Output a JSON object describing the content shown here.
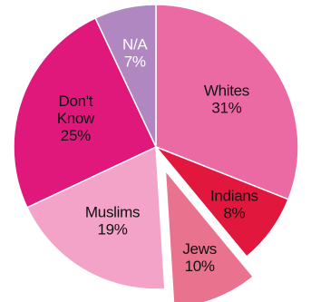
{
  "chart_data": {
    "type": "pie",
    "title": "",
    "start_angle_deg": 0,
    "direction": "clockwise",
    "slices": [
      {
        "label": "Whites",
        "value_label": "31%",
        "value": 31,
        "color": "#ec6aa4",
        "text_color": "#111111",
        "exploded": false
      },
      {
        "label": "Indians",
        "value_label": "8%",
        "value": 8,
        "color": "#e2173d",
        "text_color": "#111111",
        "exploded": false
      },
      {
        "label": "Jews",
        "value_label": "10%",
        "value": 10,
        "color": "#e9728e",
        "text_color": "#111111",
        "exploded": true
      },
      {
        "label": "Muslims",
        "value_label": "19%",
        "value": 19,
        "color": "#f2a3c7",
        "text_color": "#111111",
        "exploded": false
      },
      {
        "label": "Don't Know",
        "value_label": "25%",
        "value": 25,
        "color": "#e0187b",
        "text_color": "#111111",
        "exploded": false
      },
      {
        "label": "N/A",
        "value_label": "7%",
        "value": 7,
        "color": "#b187c1",
        "text_color": "#ffffff",
        "exploded": false
      }
    ]
  }
}
